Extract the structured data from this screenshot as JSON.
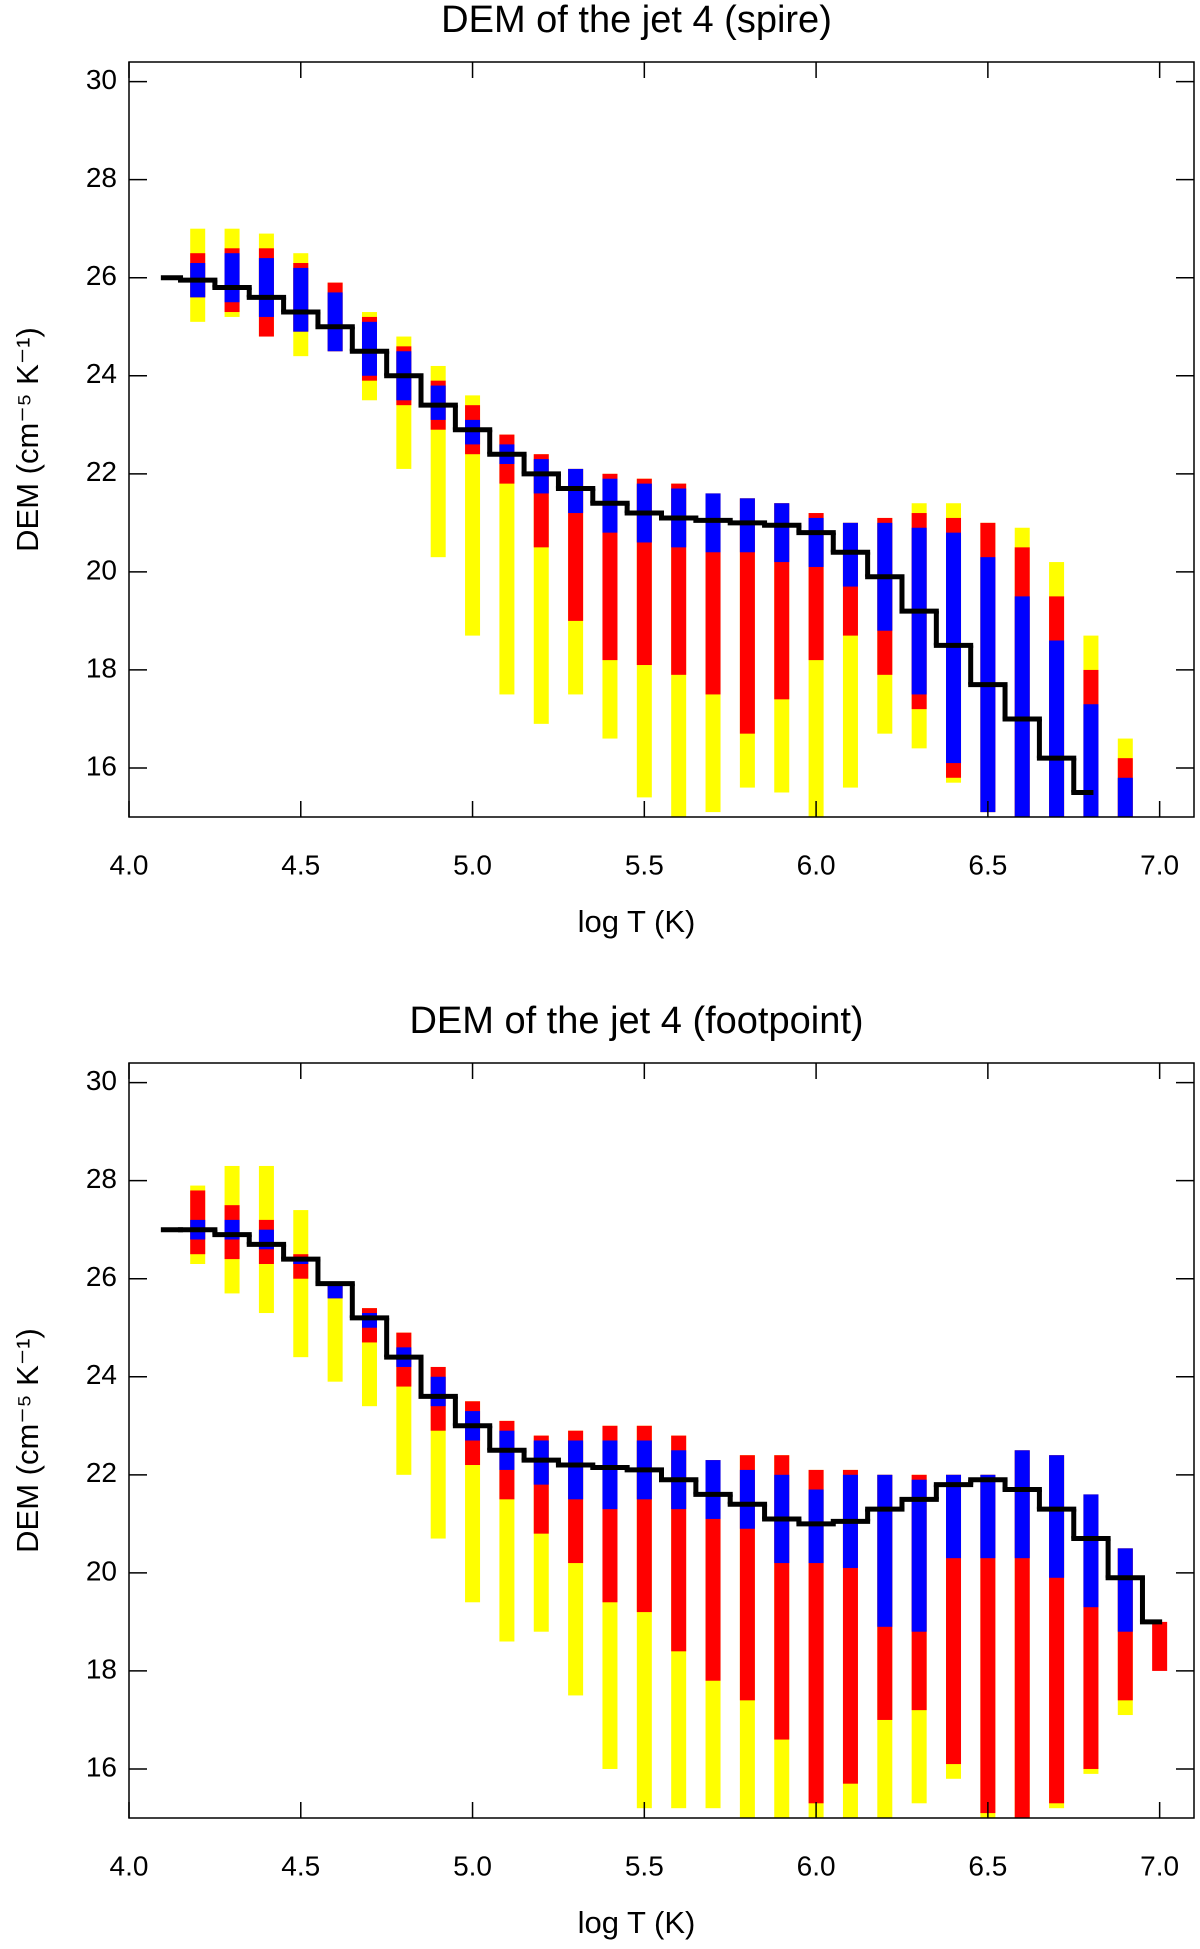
{
  "chart_data": [
    {
      "type": "range_bar",
      "title": "DEM of the jet 4 (spire)",
      "xlabel": "log T (K)",
      "ylabel": "DEM (cm⁻⁵ K⁻¹)",
      "xlim": [
        4.0,
        7.1
      ],
      "ylim": [
        15.0,
        30.4
      ],
      "xticks": [
        {
          "value": 4.0,
          "label": "4.0"
        },
        {
          "value": 4.5,
          "label": "4.5"
        },
        {
          "value": 5.0,
          "label": "5.0"
        },
        {
          "value": 5.5,
          "label": "5.5"
        },
        {
          "value": 6.0,
          "label": "6.0"
        },
        {
          "value": 6.5,
          "label": "6.5"
        },
        {
          "value": 7.0,
          "label": "7.0"
        }
      ],
      "yticks": [
        16,
        18,
        20,
        22,
        24,
        26,
        28,
        30
      ],
      "x": [
        4.2,
        4.3,
        4.4,
        4.5,
        4.6,
        4.7,
        4.8,
        4.9,
        5.0,
        5.1,
        5.2,
        5.3,
        5.4,
        5.5,
        5.6,
        5.7,
        5.8,
        5.9,
        6.0,
        6.1,
        6.2,
        6.3,
        6.4,
        6.5,
        6.6,
        6.7,
        6.8,
        6.9
      ],
      "series": [
        {
          "color": "#ffff00",
          "low": [
            25.1,
            25.2,
            24.8,
            24.4,
            24.5,
            23.5,
            22.1,
            20.3,
            18.7,
            17.5,
            16.9,
            17.5,
            16.6,
            15.4,
            15.0,
            15.1,
            15.6,
            15.5,
            15.0,
            15.6,
            16.7,
            16.4,
            15.7,
            15.1,
            15.0,
            15.0,
            15.0,
            15.0
          ],
          "high": [
            27.0,
            27.0,
            26.9,
            26.5,
            25.9,
            25.3,
            24.8,
            24.2,
            23.6,
            22.8,
            22.4,
            22.1,
            22.0,
            21.9,
            21.8,
            21.6,
            21.5,
            21.4,
            21.2,
            21.0,
            21.1,
            21.4,
            21.4,
            21.0,
            20.9,
            20.2,
            18.7,
            16.6
          ]
        },
        {
          "color": "#ff0000",
          "low": [
            25.6,
            25.3,
            24.8,
            24.9,
            24.5,
            23.9,
            23.4,
            22.9,
            22.4,
            21.8,
            20.5,
            19.0,
            18.2,
            18.1,
            17.9,
            17.5,
            16.7,
            17.4,
            18.2,
            18.7,
            17.9,
            17.2,
            15.8,
            15.1,
            15.0,
            15.0,
            15.0,
            15.0
          ],
          "high": [
            26.5,
            26.6,
            26.6,
            26.3,
            25.9,
            25.2,
            24.6,
            23.9,
            23.4,
            22.8,
            22.4,
            22.1,
            22.0,
            21.9,
            21.8,
            21.6,
            21.5,
            21.4,
            21.2,
            21.0,
            21.1,
            21.2,
            21.1,
            21.0,
            20.5,
            19.5,
            18.0,
            16.2
          ]
        },
        {
          "color": "#0000ff",
          "low": [
            25.6,
            25.5,
            25.2,
            24.9,
            24.5,
            24.0,
            23.5,
            23.1,
            22.6,
            22.2,
            21.6,
            21.2,
            20.8,
            20.6,
            20.5,
            20.4,
            20.4,
            20.2,
            20.1,
            19.7,
            18.8,
            17.5,
            16.1,
            15.1,
            15.0,
            15.0,
            15.0,
            15.0
          ],
          "high": [
            26.3,
            26.5,
            26.4,
            26.2,
            25.7,
            25.1,
            24.5,
            23.8,
            23.1,
            22.6,
            22.3,
            22.1,
            21.9,
            21.8,
            21.7,
            21.6,
            21.5,
            21.4,
            21.1,
            21.0,
            21.0,
            20.9,
            20.8,
            20.3,
            19.5,
            18.6,
            17.3,
            15.8
          ]
        }
      ],
      "line": {
        "color": "#000000",
        "x": [
          4.1,
          4.2,
          4.3,
          4.4,
          4.5,
          4.6,
          4.7,
          4.8,
          4.9,
          5.0,
          5.1,
          5.2,
          5.3,
          5.4,
          5.5,
          5.6,
          5.7,
          5.8,
          5.9,
          6.0,
          6.1,
          6.2,
          6.3,
          6.4,
          6.5,
          6.6,
          6.7,
          6.8
        ],
        "values": [
          26.0,
          25.95,
          25.8,
          25.6,
          25.3,
          25.0,
          24.5,
          24.0,
          23.4,
          22.9,
          22.4,
          22.0,
          21.7,
          21.4,
          21.2,
          21.1,
          21.05,
          21.0,
          20.95,
          20.8,
          20.4,
          19.9,
          19.2,
          18.5,
          17.7,
          17.0,
          16.2,
          15.5
        ]
      }
    },
    {
      "type": "range_bar",
      "title": "DEM of the jet 4 (footpoint)",
      "xlabel": "log T (K)",
      "ylabel": "DEM (cm⁻⁵ K⁻¹)",
      "xlim": [
        4.0,
        7.1
      ],
      "ylim": [
        15.0,
        30.4
      ],
      "xticks": [
        {
          "value": 4.0,
          "label": "4.0"
        },
        {
          "value": 4.5,
          "label": "4.5"
        },
        {
          "value": 5.0,
          "label": "5.0"
        },
        {
          "value": 5.5,
          "label": "5.5"
        },
        {
          "value": 6.0,
          "label": "6.0"
        },
        {
          "value": 6.5,
          "label": "6.5"
        },
        {
          "value": 7.0,
          "label": "7.0"
        }
      ],
      "yticks": [
        16,
        18,
        20,
        22,
        24,
        26,
        28,
        30
      ],
      "x": [
        4.2,
        4.3,
        4.4,
        4.5,
        4.6,
        4.7,
        4.8,
        4.9,
        5.0,
        5.1,
        5.2,
        5.3,
        5.4,
        5.5,
        5.6,
        5.7,
        5.8,
        5.9,
        6.0,
        6.1,
        6.2,
        6.3,
        6.4,
        6.5,
        6.6,
        6.7,
        6.8,
        6.9,
        7.0
      ],
      "series": [
        {
          "color": "#ffff00",
          "low": [
            26.3,
            25.7,
            25.3,
            24.4,
            23.9,
            23.4,
            22.0,
            20.7,
            19.4,
            18.6,
            18.8,
            17.5,
            16.0,
            15.2,
            15.2,
            15.2,
            15.0,
            15.0,
            15.0,
            15.0,
            15.0,
            15.3,
            15.8,
            15.0,
            15.0,
            15.2,
            15.9,
            17.1,
            null
          ],
          "high": [
            27.9,
            28.3,
            28.3,
            27.4,
            25.9,
            25.4,
            24.9,
            24.2,
            23.5,
            23.1,
            22.8,
            22.9,
            23.0,
            23.0,
            22.8,
            22.3,
            22.4,
            22.4,
            22.1,
            22.1,
            22.0,
            22.0,
            22.0,
            22.0,
            22.5,
            22.4,
            21.6,
            20.5,
            null
          ]
        },
        {
          "color": "#ff0000",
          "low": [
            26.5,
            26.4,
            26.3,
            26.0,
            25.6,
            24.7,
            23.8,
            22.9,
            22.2,
            21.5,
            20.8,
            20.2,
            19.4,
            19.2,
            18.4,
            17.8,
            17.4,
            16.6,
            15.3,
            15.7,
            17.0,
            17.2,
            16.1,
            15.1,
            15.0,
            15.3,
            16.0,
            17.4,
            18.0
          ],
          "high": [
            27.8,
            27.5,
            27.2,
            26.5,
            25.9,
            25.4,
            24.9,
            24.2,
            23.5,
            23.1,
            22.8,
            22.9,
            23.0,
            23.0,
            22.8,
            22.3,
            22.4,
            22.4,
            22.1,
            22.1,
            22.0,
            22.0,
            22.0,
            22.0,
            22.5,
            22.4,
            21.6,
            20.5,
            19.0
          ]
        },
        {
          "color": "#0000ff",
          "low": [
            26.8,
            26.8,
            26.6,
            26.3,
            25.6,
            25.0,
            24.2,
            23.4,
            22.7,
            22.1,
            21.8,
            21.5,
            21.3,
            21.5,
            21.3,
            21.1,
            20.9,
            20.2,
            20.2,
            20.1,
            18.9,
            18.8,
            20.3,
            20.3,
            20.3,
            19.9,
            19.3,
            18.8,
            null
          ],
          "high": [
            27.2,
            27.2,
            27.0,
            26.4,
            25.9,
            25.3,
            24.6,
            24.0,
            23.3,
            22.9,
            22.7,
            22.7,
            22.7,
            22.7,
            22.5,
            22.3,
            22.1,
            22.0,
            21.7,
            22.0,
            22.0,
            21.9,
            22.0,
            22.0,
            22.5,
            22.4,
            21.6,
            20.5,
            null
          ]
        }
      ],
      "line": {
        "color": "#000000",
        "x": [
          4.1,
          4.2,
          4.3,
          4.4,
          4.5,
          4.6,
          4.7,
          4.8,
          4.9,
          5.0,
          5.1,
          5.2,
          5.3,
          5.4,
          5.5,
          5.6,
          5.7,
          5.8,
          5.9,
          6.0,
          6.1,
          6.2,
          6.3,
          6.4,
          6.5,
          6.6,
          6.7,
          6.8,
          6.9,
          7.0
        ],
        "values": [
          27.0,
          27.0,
          26.9,
          26.7,
          26.4,
          25.9,
          25.2,
          24.4,
          23.6,
          23.0,
          22.5,
          22.3,
          22.2,
          22.15,
          22.1,
          21.9,
          21.6,
          21.4,
          21.1,
          21.0,
          21.05,
          21.3,
          21.5,
          21.8,
          21.9,
          21.7,
          21.3,
          20.7,
          19.9,
          19.0
        ]
      }
    }
  ]
}
